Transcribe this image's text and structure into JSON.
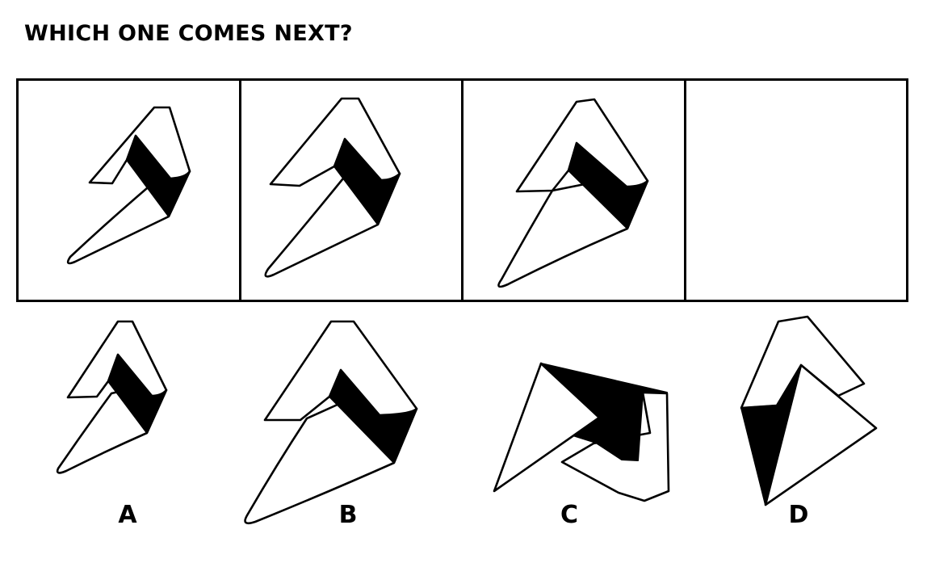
{
  "title": "WHICH ONE COMES NEXT?",
  "sequence": {
    "frames": [
      {
        "figure": "arrowhead-shape",
        "scale": 1.0
      },
      {
        "figure": "arrowhead-shape",
        "scale": 1.12
      },
      {
        "figure": "arrowhead-shape",
        "scale": 1.24
      },
      {
        "figure": "empty"
      }
    ]
  },
  "options": [
    {
      "label": "A",
      "figure": "arrowhead-shape",
      "scale": 1.0
    },
    {
      "label": "B",
      "figure": "arrowhead-shape",
      "scale": 1.36
    },
    {
      "label": "C",
      "figure": "rotated-shape"
    },
    {
      "label": "D",
      "figure": "flipped-shape"
    }
  ]
}
